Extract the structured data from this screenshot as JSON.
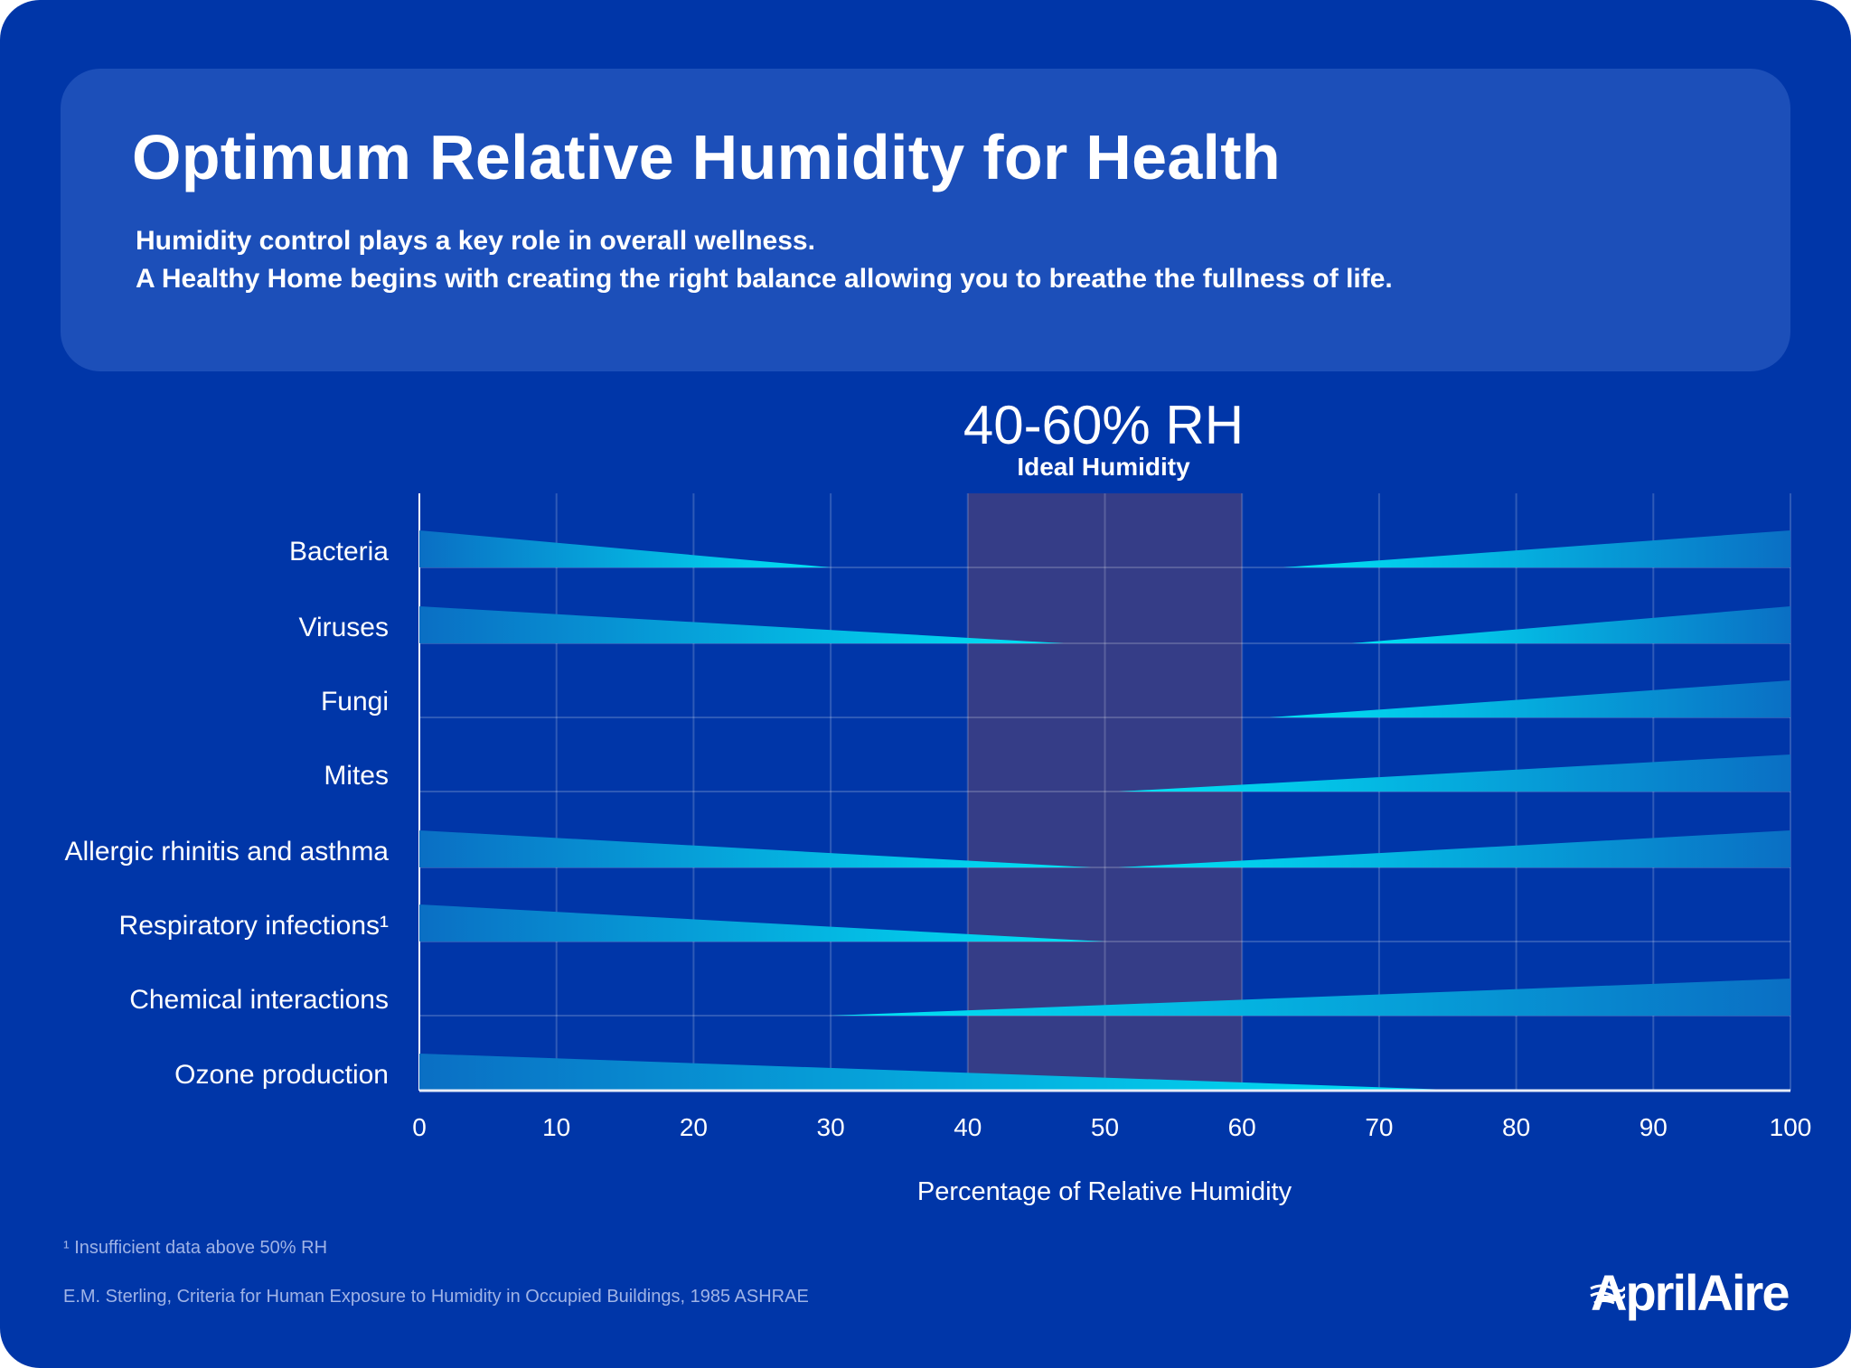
{
  "header": {
    "title": "Optimum Relative Humidity for Health",
    "subtitle_lines": [
      "Humidity control plays a key role in overall wellness.",
      "A Healthy Home begins with creating the right balance allowing you to breathe the fullness of life."
    ]
  },
  "ideal": {
    "range_label": "40-60% RH",
    "label": "Ideal Humidity"
  },
  "colors": {
    "background": "#0036a8",
    "card": "#1c4fb9",
    "ideal_band": "#353d87",
    "wedge_thick": "#0a6fc4",
    "wedge_tip": "#00e6f6"
  },
  "chart_data": {
    "type": "bar",
    "xlabel": "Percentage of Relative Humidity",
    "xlim": [
      0,
      100
    ],
    "x_ticks": [
      "0",
      "10",
      "20",
      "30",
      "40",
      "50",
      "60",
      "70",
      "80",
      "90",
      "100"
    ],
    "grid": true,
    "highlight_range": [
      40,
      60
    ],
    "categories": [
      "Bacteria",
      "Viruses",
      "Fungi",
      "Mites",
      "Allergic rhinitis and asthma",
      "Respiratory infections¹",
      "Chemical interactions",
      "Ozone production"
    ],
    "series": [
      {
        "category": "Bacteria",
        "decreasing_from_dry": [
          0,
          30
        ],
        "increasing_to_humid": [
          63,
          100
        ]
      },
      {
        "category": "Viruses",
        "decreasing_from_dry": [
          0,
          47
        ],
        "increasing_to_humid": [
          68,
          100
        ]
      },
      {
        "category": "Fungi",
        "decreasing_from_dry": null,
        "increasing_to_humid": [
          62,
          100
        ]
      },
      {
        "category": "Mites",
        "decreasing_from_dry": null,
        "increasing_to_humid": [
          51,
          100
        ]
      },
      {
        "category": "Allergic rhinitis and asthma",
        "decreasing_from_dry": [
          0,
          49
        ],
        "increasing_to_humid": [
          51,
          100
        ]
      },
      {
        "category": "Respiratory infections¹",
        "decreasing_from_dry": [
          0,
          50
        ],
        "increasing_to_humid": null
      },
      {
        "category": "Chemical interactions",
        "decreasing_from_dry": null,
        "increasing_to_humid": [
          30,
          100
        ]
      },
      {
        "category": "Ozone production",
        "decreasing_from_dry": [
          0,
          77
        ],
        "increasing_to_humid": null
      }
    ]
  },
  "footnotes": {
    "note1": "¹ Insufficient data above 50% RH",
    "source": "E.M. Sterling, Criteria for Human Exposure to Humidity in Occupied Buildings, 1985 ASHRAE"
  },
  "logo": {
    "text": "AprilAire"
  }
}
